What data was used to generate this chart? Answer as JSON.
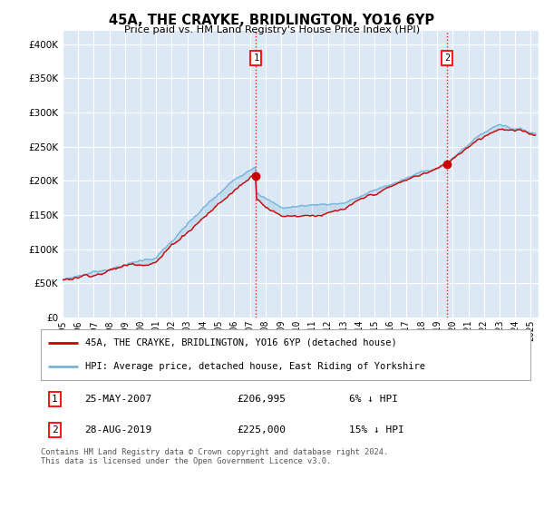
{
  "title": "45A, THE CRAYKE, BRIDLINGTON, YO16 6YP",
  "subtitle": "Price paid vs. HM Land Registry's House Price Index (HPI)",
  "background_color": "#ffffff",
  "plot_bg_color": "#dce9f5",
  "hpi_color": "#7ab4d8",
  "price_color": "#cc0000",
  "ylim": [
    0,
    420000
  ],
  "yticks": [
    0,
    50000,
    100000,
    150000,
    200000,
    250000,
    300000,
    350000,
    400000
  ],
  "xlim_start": 1995.0,
  "xlim_end": 2025.5,
  "marker1_x": 2007.4,
  "marker1_y": 206995,
  "marker1_label": "1",
  "marker1_date": "25-MAY-2007",
  "marker1_price": "£206,995",
  "marker1_note": "6% ↓ HPI",
  "marker2_x": 2019.65,
  "marker2_y": 225000,
  "marker2_label": "2",
  "marker2_date": "28-AUG-2019",
  "marker2_price": "£225,000",
  "marker2_note": "15% ↓ HPI",
  "legend_label1": "45A, THE CRAYKE, BRIDLINGTON, YO16 6YP (detached house)",
  "legend_label2": "HPI: Average price, detached house, East Riding of Yorkshire",
  "footer": "Contains HM Land Registry data © Crown copyright and database right 2024.\nThis data is licensed under the Open Government Licence v3.0.",
  "xtick_years": [
    1995,
    1996,
    1997,
    1998,
    1999,
    2000,
    2001,
    2002,
    2003,
    2004,
    2005,
    2006,
    2007,
    2008,
    2009,
    2010,
    2011,
    2012,
    2013,
    2014,
    2015,
    2016,
    2017,
    2018,
    2019,
    2020,
    2021,
    2022,
    2023,
    2024,
    2025
  ]
}
